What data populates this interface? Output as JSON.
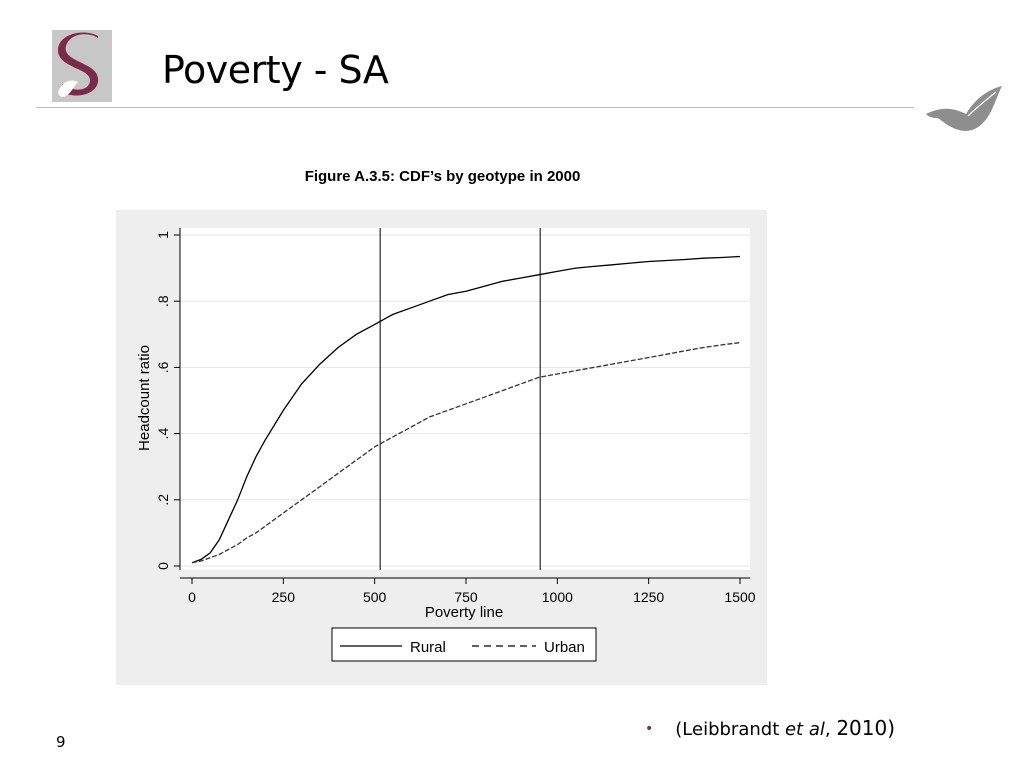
{
  "slide": {
    "title": "Poverty - SA",
    "page_number": "9",
    "citation": {
      "open": "(Leibbrandt ",
      "et_al": "et al",
      "sep": ", ",
      "year": "2010)"
    },
    "logo_letter": "S"
  },
  "colors": {
    "logo_maroon": "#7b2a48",
    "logo_gray": "#8a8a8a",
    "leaf_gray": "#8e8e8e",
    "bullet": "#7b2a48",
    "chart_background": "#eeeeee",
    "gridline": "#e5e5e5"
  },
  "chart_data": {
    "type": "line",
    "title": "Figure A.3.5: CDF’s by geotype in 2000",
    "xlabel": "Poverty line",
    "ylabel": "Headcount ratio",
    "xlim": [
      0,
      1500
    ],
    "ylim": [
      0,
      1
    ],
    "x_ticks": [
      {
        "value": 0,
        "label": "0"
      },
      {
        "value": 250,
        "label": "250"
      },
      {
        "value": 500,
        "label": "500"
      },
      {
        "value": 750,
        "label": "750"
      },
      {
        "value": 1000,
        "label": "1000"
      },
      {
        "value": 1250,
        "label": "1250"
      },
      {
        "value": 1500,
        "label": "1500"
      }
    ],
    "y_ticks": [
      {
        "value": 0,
        "label": "0"
      },
      {
        "value": 0.2,
        "label": ".2"
      },
      {
        "value": 0.4,
        "label": ".4"
      },
      {
        "value": 0.6,
        "label": ".6"
      },
      {
        "value": 0.8,
        "label": ".8"
      },
      {
        "value": 1,
        "label": "1"
      }
    ],
    "grid": true,
    "legend_position": "bottom",
    "vertical_lines": [
      515,
      953
    ],
    "x": [
      0,
      25,
      50,
      75,
      100,
      125,
      150,
      175,
      200,
      250,
      300,
      350,
      400,
      450,
      500,
      550,
      600,
      650,
      700,
      750,
      800,
      850,
      900,
      950,
      1000,
      1050,
      1100,
      1150,
      1200,
      1250,
      1300,
      1350,
      1400,
      1450,
      1500
    ],
    "series": [
      {
        "name": "Rural",
        "style": "solid",
        "values": [
          0.01,
          0.02,
          0.04,
          0.08,
          0.14,
          0.2,
          0.27,
          0.33,
          0.38,
          0.47,
          0.55,
          0.61,
          0.66,
          0.7,
          0.73,
          0.76,
          0.78,
          0.8,
          0.82,
          0.83,
          0.845,
          0.86,
          0.87,
          0.88,
          0.89,
          0.9,
          0.905,
          0.91,
          0.915,
          0.92,
          0.923,
          0.926,
          0.93,
          0.932,
          0.935
        ]
      },
      {
        "name": "Urban",
        "style": "dashed",
        "values": [
          0.01,
          0.015,
          0.025,
          0.035,
          0.05,
          0.065,
          0.085,
          0.1,
          0.12,
          0.16,
          0.2,
          0.24,
          0.28,
          0.32,
          0.36,
          0.39,
          0.42,
          0.45,
          0.47,
          0.49,
          0.51,
          0.53,
          0.55,
          0.57,
          0.58,
          0.59,
          0.6,
          0.61,
          0.62,
          0.63,
          0.64,
          0.65,
          0.66,
          0.668,
          0.675
        ]
      }
    ]
  }
}
